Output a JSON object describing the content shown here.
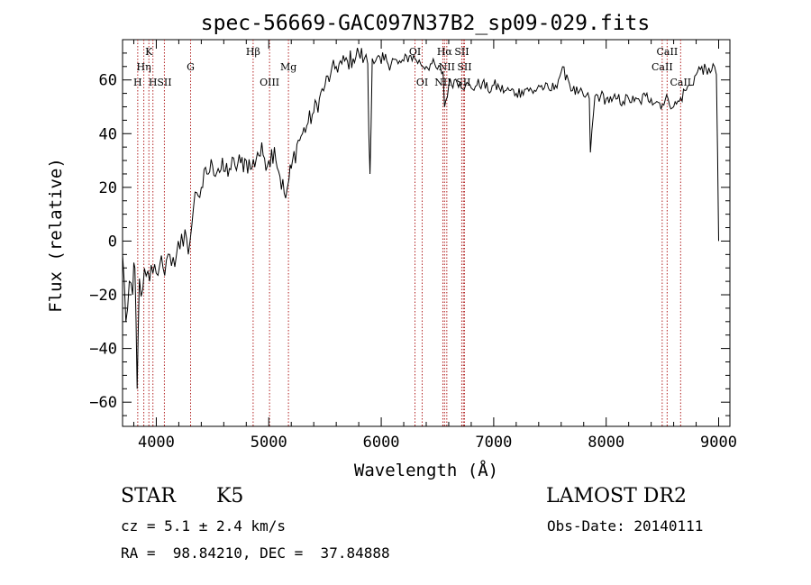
{
  "chart_data": {
    "type": "line",
    "title": "spec-56669-GAC097N37B2_sp09-029.fits",
    "xlabel": "Wavelength (Å)",
    "ylabel": "Flux (relative)",
    "xlim": [
      3700,
      9100
    ],
    "ylim": [
      -69,
      75
    ],
    "xticks": [
      4000,
      5000,
      6000,
      7000,
      8000,
      9000
    ],
    "xtick_labels": [
      "4000",
      "5000",
      "6000",
      "7000",
      "8000",
      "9000"
    ],
    "yticks": [
      -60,
      -40,
      -20,
      0,
      20,
      40,
      60
    ],
    "ytick_labels": [
      "−60",
      "−40",
      "−20",
      "0",
      "20",
      "40",
      "60"
    ],
    "grid": false,
    "line_color": "#000000",
    "marker_color": "#b22222",
    "series": [
      {
        "x": [
          3700,
          3730,
          3760,
          3790,
          3810,
          3830,
          3850,
          3880,
          3910,
          3940,
          3970,
          4000,
          4030,
          4060,
          4090,
          4120,
          4150,
          4180,
          4210,
          4240,
          4270,
          4300,
          4330,
          4360,
          4400,
          4450,
          4500,
          4550,
          4600,
          4650,
          4700,
          4750,
          4800,
          4850,
          4900,
          4950,
          5000,
          5050,
          5100,
          5150,
          5180,
          5200,
          5250,
          5300,
          5350,
          5400,
          5450,
          5500,
          5550,
          5600,
          5650,
          5700,
          5750,
          5800,
          5850,
          5880,
          5890,
          5900,
          5920,
          5950,
          6000,
          6050,
          6100,
          6150,
          6200,
          6250,
          6300,
          6350,
          6400,
          6450,
          6500,
          6550,
          6563,
          6600,
          6650,
          6700,
          6750,
          6800,
          6850,
          6900,
          6950,
          7000,
          7050,
          7100,
          7150,
          7200,
          7250,
          7300,
          7350,
          7400,
          7450,
          7500,
          7550,
          7600,
          7650,
          7700,
          7750,
          7800,
          7850,
          7860,
          7900,
          7950,
          8000,
          8050,
          8100,
          8150,
          8200,
          8250,
          8300,
          8350,
          8400,
          8450,
          8500,
          8550,
          8600,
          8650,
          8700,
          8750,
          8800,
          8850,
          8900,
          8950,
          8980,
          9000
        ],
        "y": [
          -5,
          -30,
          -15,
          -20,
          -10,
          -55,
          -14,
          -18,
          -13,
          -15,
          -12,
          -12,
          -9,
          -10,
          -7,
          -5,
          -6,
          -5,
          -3,
          -2,
          1,
          0,
          12,
          18,
          20,
          25,
          28,
          27,
          26,
          27,
          28,
          29,
          30,
          27,
          33,
          32,
          30,
          35,
          24,
          16,
          23,
          27,
          36,
          40,
          44,
          48,
          53,
          58,
          62,
          65,
          66,
          67,
          68,
          70,
          68,
          66,
          40,
          25,
          68,
          67,
          66,
          67,
          68,
          66,
          67,
          69,
          68,
          66,
          65,
          66,
          64,
          63,
          50,
          58,
          60,
          59,
          58,
          57,
          58,
          59,
          56,
          58,
          57,
          56,
          56,
          55,
          56,
          57,
          55,
          58,
          57,
          56,
          58,
          63,
          62,
          56,
          55,
          54,
          53,
          33,
          54,
          54,
          53,
          52,
          53,
          52,
          53,
          52,
          52,
          54,
          53,
          52,
          51,
          53,
          50,
          52,
          56,
          58,
          62,
          65,
          62,
          66,
          62,
          0
        ]
      }
    ],
    "line_markers": [
      {
        "label": "H",
        "wavelength": 3835,
        "tier": "low"
      },
      {
        "label": "Hη",
        "wavelength": 3889,
        "tier": "mid"
      },
      {
        "label": "K",
        "wavelength": 3934,
        "tier": "high"
      },
      {
        "label": "H",
        "wavelength": 3970,
        "tier": "low"
      },
      {
        "label": "SII",
        "wavelength": 4072,
        "tier": "low"
      },
      {
        "label": "G",
        "wavelength": 4305,
        "tier": "mid"
      },
      {
        "label": "Hβ",
        "wavelength": 4861,
        "tier": "high"
      },
      {
        "label": "OIII",
        "wavelength": 5007,
        "tier": "low"
      },
      {
        "label": "Mg",
        "wavelength": 5175,
        "tier": "mid"
      },
      {
        "label": "OI",
        "wavelength": 6300,
        "tier": "high"
      },
      {
        "label": "OI",
        "wavelength": 6364,
        "tier": "low"
      },
      {
        "label": "NII",
        "wavelength": 6548,
        "tier": "low"
      },
      {
        "label": "Hα",
        "wavelength": 6563,
        "tier": "high"
      },
      {
        "label": "NII",
        "wavelength": 6583,
        "tier": "mid"
      },
      {
        "label": "SII",
        "wavelength": 6716,
        "tier": "high"
      },
      {
        "label": "SII",
        "wavelength": 6731,
        "tier": "low"
      },
      {
        "label": "SII",
        "wavelength": 6740,
        "tier": "mid"
      },
      {
        "label": "CaII",
        "wavelength": 8498,
        "tier": "mid"
      },
      {
        "label": "CaII",
        "wavelength": 8542,
        "tier": "high"
      },
      {
        "label": "CaII",
        "wavelength": 8662,
        "tier": "low"
      }
    ]
  },
  "info": {
    "class_label": "STAR",
    "subclass_label": "K5",
    "survey": "LAMOST DR2",
    "cz": "cz = 5.1 ± 2.4 km/s",
    "obs_date": "Obs-Date: 20140111",
    "coords": "RA =  98.84210, DEC =  37.84888"
  }
}
